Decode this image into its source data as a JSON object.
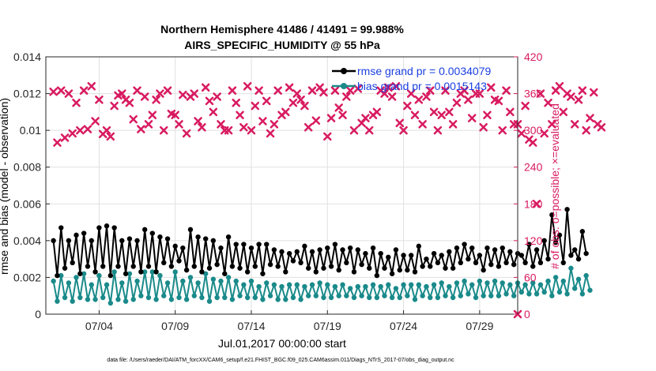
{
  "chart_data": {
    "type": "line",
    "title": "Northern Hemisphere 41486 / 41491 = 99.988%",
    "subtitle": "AIRS_SPECIFIC_HUMIDITY @ 55 hPa",
    "xlabel": "Jul.01,2017 00:00:00 start",
    "ylabel": "rmse and bias (model - observation)",
    "y2label": "# of obs: o=possible; ×=evaluated",
    "footnote": "data file: /Users/raeder/DAI/ATM_forcXX/CAM6_setup/f.e21.FHIST_BGC.f09_025.CAM6assim.011/Diags_NTrS_2017-07/obs_diag_output.nc",
    "xlim": [
      0.5,
      31.5
    ],
    "ylim": [
      0,
      0.014
    ],
    "y2lim": [
      0,
      420
    ],
    "x_ticks": [
      4,
      9,
      14,
      19,
      24,
      29
    ],
    "x_tick_labels": [
      "07/04",
      "07/09",
      "07/14",
      "07/19",
      "07/24",
      "07/29"
    ],
    "y_ticks": [
      0,
      0.002,
      0.004,
      0.006,
      0.008,
      0.01,
      0.012,
      0.014
    ],
    "y_tick_labels": [
      "0",
      "0.002",
      "0.004",
      "0.006",
      "0.008",
      "0.01",
      "0.012",
      "0.014"
    ],
    "y2_ticks": [
      0,
      60,
      120,
      180,
      240,
      300,
      360,
      420
    ],
    "y2_tick_labels": [
      "0",
      "60",
      "120",
      "180",
      "240",
      "300",
      "360",
      "420"
    ],
    "grid": true,
    "legend_position": "top-right",
    "colors": {
      "rmse": "#000000",
      "bias": "#1a8a8a",
      "obs": "#d81b60",
      "legend_text": "#1a3fe0",
      "axis": "#262626",
      "grid": "#e0e0e0"
    },
    "x_start": 1.0,
    "x_step": 0.25,
    "series": [
      {
        "name": "rmse grand pr = 0.0034079",
        "axis": "left",
        "color": "#000000",
        "values": [
          0.004,
          0.0021,
          0.0047,
          0.0025,
          0.004,
          0.0028,
          0.0043,
          0.0022,
          0.0044,
          0.0026,
          0.004,
          0.0023,
          0.0047,
          0.0026,
          0.0048,
          0.0021,
          0.0047,
          0.0026,
          0.004,
          0.0022,
          0.0041,
          0.0026,
          0.004,
          0.0023,
          0.0046,
          0.0026,
          0.0044,
          0.0023,
          0.0042,
          0.0028,
          0.0041,
          0.0026,
          0.0037,
          0.0029,
          0.0036,
          0.0024,
          0.0046,
          0.0026,
          0.0042,
          0.0023,
          0.0041,
          0.0025,
          0.004,
          0.0027,
          0.0036,
          0.0022,
          0.0042,
          0.0026,
          0.0038,
          0.0025,
          0.0038,
          0.0023,
          0.0036,
          0.0026,
          0.0038,
          0.0022,
          0.0038,
          0.0027,
          0.0035,
          0.0026,
          0.0034,
          0.0023,
          0.0033,
          0.0029,
          0.0034,
          0.0028,
          0.0037,
          0.0025,
          0.0034,
          0.0023,
          0.0035,
          0.0025,
          0.0036,
          0.0026,
          0.0038,
          0.0024,
          0.0035,
          0.0028,
          0.0036,
          0.0023,
          0.0035,
          0.0027,
          0.0033,
          0.0025,
          0.0036,
          0.0021,
          0.0033,
          0.0025,
          0.0031,
          0.0022,
          0.0035,
          0.0024,
          0.0032,
          0.0024,
          0.0032,
          0.0023,
          0.0037,
          0.0026,
          0.003,
          0.0026,
          0.0033,
          0.0028,
          0.0032,
          0.0025,
          0.0034,
          0.0025,
          0.0036,
          0.0028,
          0.0038,
          0.003,
          0.0036,
          0.0028,
          0.0032,
          0.0024,
          0.0036,
          0.0027,
          0.0035,
          0.0026,
          0.0036,
          0.0028,
          0.0034,
          0.0027,
          0.0033,
          0.0032,
          0.0028,
          0.0038,
          0.0026,
          0.0035,
          0.0028,
          0.004,
          0.003,
          0.0054,
          0.0039,
          0.0043,
          0.0028,
          0.0057,
          0.0032,
          0.0035,
          0.003,
          0.0045,
          0.0033
        ]
      },
      {
        "name": "bias grand pr = 0.0015143",
        "axis": "left",
        "color": "#1a8a8a",
        "values": [
          0.0018,
          0.0007,
          0.0021,
          0.0009,
          0.0017,
          0.0007,
          0.002,
          0.0009,
          0.0022,
          0.0008,
          0.0016,
          0.0008,
          0.0021,
          0.0009,
          0.0016,
          0.0006,
          0.0023,
          0.0008,
          0.0017,
          0.0007,
          0.0022,
          0.0008,
          0.0018,
          0.001,
          0.0023,
          0.0009,
          0.0023,
          0.0008,
          0.0021,
          0.001,
          0.0017,
          0.0008,
          0.0023,
          0.0009,
          0.0018,
          0.0008,
          0.002,
          0.001,
          0.0017,
          0.0009,
          0.0022,
          0.0007,
          0.0019,
          0.0009,
          0.0018,
          0.0009,
          0.002,
          0.0008,
          0.0018,
          0.001,
          0.0016,
          0.0009,
          0.0018,
          0.0009,
          0.0015,
          0.0008,
          0.0017,
          0.001,
          0.0016,
          0.0008,
          0.0015,
          0.0008,
          0.0016,
          0.0009,
          0.0016,
          0.0008,
          0.0015,
          0.001,
          0.0016,
          0.001,
          0.0017,
          0.0009,
          0.0016,
          0.0009,
          0.0015,
          0.001,
          0.0016,
          0.001,
          0.0014,
          0.0009,
          0.0015,
          0.001,
          0.0015,
          0.0009,
          0.0016,
          0.0009,
          0.0015,
          0.001,
          0.0016,
          0.0009,
          0.0014,
          0.0009,
          0.0016,
          0.001,
          0.0016,
          0.0008,
          0.0016,
          0.001,
          0.0015,
          0.0009,
          0.0016,
          0.0009,
          0.0017,
          0.001,
          0.0015,
          0.0009,
          0.0017,
          0.001,
          0.0018,
          0.0011,
          0.0016,
          0.0009,
          0.0018,
          0.001,
          0.0017,
          0.001,
          0.0018,
          0.001,
          0.0017,
          0.0011,
          0.0016,
          0.001,
          0.0017,
          0.0012,
          0.0016,
          0.0011,
          0.0017,
          0.0011,
          0.0016,
          0.0012,
          0.0018,
          0.001,
          0.002,
          0.0012,
          0.0018,
          0.0011,
          0.0025,
          0.0014,
          0.0019,
          0.0011,
          0.0021,
          0.0013
        ]
      },
      {
        "name": "# of obs evaluated",
        "axis": "right",
        "color": "#d81b60",
        "values": [
          363,
          280,
          365,
          288,
          360,
          295,
          345,
          300,
          365,
          302,
          372,
          315,
          350,
          294,
          300,
          290,
          340,
          357,
          360,
          350,
          345,
          318,
          365,
          302,
          355,
          310,
          325,
          350,
          360,
          300,
          365,
          327,
          325,
          310,
          358,
          295,
          355,
          360,
          315,
          305,
          370,
          348,
          330,
          355,
          310,
          300,
          300,
          365,
          345,
          325,
          305,
          372,
          300,
          340,
          365,
          315,
          348,
          295,
          310,
          365,
          325,
          330,
          370,
          345,
          360,
          350,
          340,
          305,
          365,
          316,
          370,
          362,
          290,
          320,
          365,
          337,
          325,
          355,
          365,
          300,
          368,
          312,
          320,
          300,
          325,
          330,
          365,
          360,
          370,
          355,
          372,
          312,
          300,
          340,
          360,
          325,
          350,
          310,
          355,
          365,
          330,
          300,
          325,
          365,
          330,
          310,
          345,
          360,
          365,
          350,
          320,
          360,
          360,
          305,
          325,
          370,
          350,
          348,
          300,
          365,
          330,
          310,
          310,
          295,
          340,
          285,
          280,
          180,
          360,
          295,
          345,
          310,
          365,
          372,
          330,
          360,
          355,
          310,
          350,
          365,
          300,
          320,
          362,
          310,
          305
        ]
      }
    ]
  }
}
